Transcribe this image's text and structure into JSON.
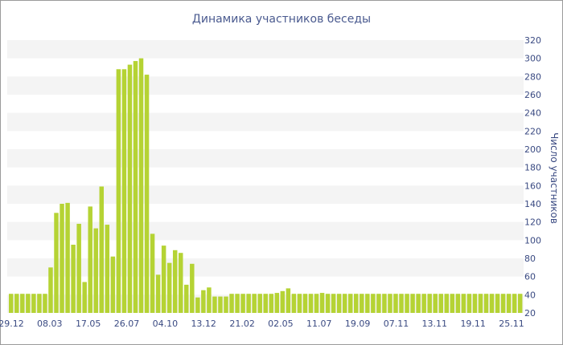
{
  "chart_data": {
    "type": "bar",
    "title": "Динамика участников беседы",
    "xlabel": "",
    "ylabel": "Число участников",
    "ylim": [
      20,
      320
    ],
    "y_ticks": [
      20,
      40,
      60,
      80,
      100,
      120,
      140,
      160,
      180,
      200,
      220,
      240,
      260,
      280,
      300,
      320
    ],
    "y_axis_side": "right",
    "grid": "horizontal alternating bands",
    "bar_color": "#b5d334",
    "title_color": "#4a5a8f",
    "tick_color": "#3a4a82",
    "x_ticks": [
      "29.12",
      "08.03",
      "17.05",
      "26.07",
      "04.10",
      "13.12",
      "21.02",
      "02.05",
      "11.07",
      "19.09",
      "07.11",
      "13.11",
      "19.11",
      "25.11"
    ],
    "values": [
      41,
      41,
      41,
      41,
      41,
      41,
      41,
      70,
      130,
      140,
      141,
      95,
      118,
      54,
      137,
      113,
      159,
      117,
      82,
      288,
      288,
      293,
      297,
      300,
      282,
      107,
      62,
      94,
      75,
      89,
      86,
      51,
      74,
      37,
      45,
      48,
      38,
      38,
      38,
      41,
      41,
      41,
      41,
      41,
      41,
      41,
      41,
      42,
      44,
      47,
      41,
      41,
      41,
      41,
      41,
      42,
      41,
      41,
      41,
      41,
      41,
      41,
      41,
      41,
      41,
      41,
      41,
      41,
      41,
      41,
      41,
      41,
      41,
      41,
      41,
      41,
      41,
      41,
      41,
      41,
      41,
      41,
      41,
      41,
      41,
      41,
      41,
      41,
      41,
      41,
      41
    ]
  }
}
